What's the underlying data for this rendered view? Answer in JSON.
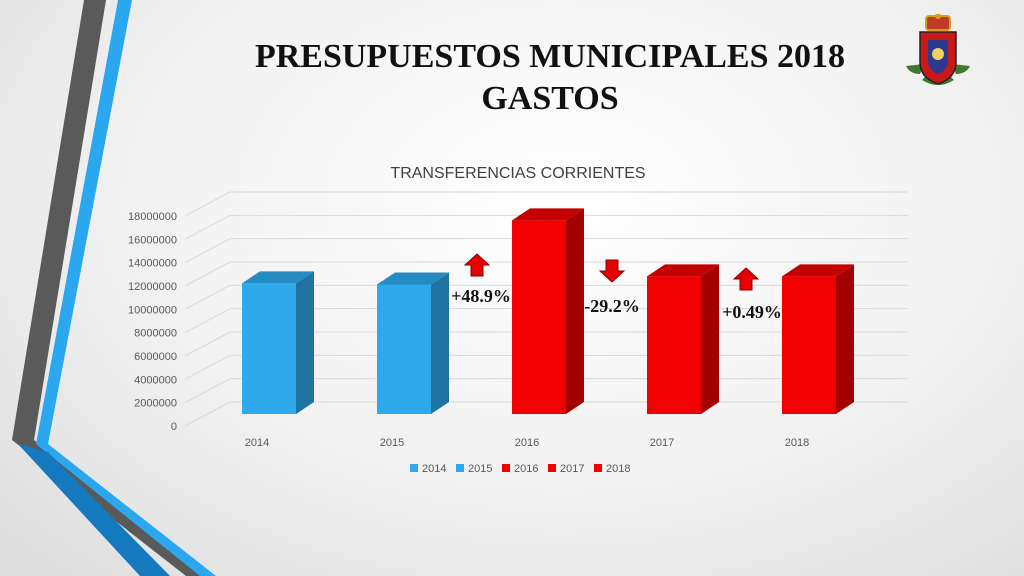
{
  "slide": {
    "title_line1": "PRESUPUESTOS MUNICIPALES 2018",
    "title_line2": "GASTOS"
  },
  "colors": {
    "blue": "#2ea9ec",
    "red": "#f00000",
    "accent_blue": "#1a9be0",
    "accent_gray": "#555555"
  },
  "icons": {
    "crest": "municipal-coat-of-arms-icon",
    "arrow_up": "arrow-up-icon",
    "arrow_down": "arrow-down-icon"
  },
  "chart_data": {
    "type": "bar",
    "title": "TRANSFERENCIAS CORRIENTES",
    "categories": [
      "2014",
      "2015",
      "2016",
      "2017",
      "2018"
    ],
    "values": [
      11200000,
      11100000,
      16600000,
      11800000,
      11800000
    ],
    "bar_colors": [
      "#2ea9ec",
      "#2ea9ec",
      "#f00000",
      "#f00000",
      "#f00000"
    ],
    "ylim": [
      0,
      18000000
    ],
    "yticks": [
      0,
      2000000,
      4000000,
      6000000,
      8000000,
      10000000,
      12000000,
      14000000,
      16000000,
      18000000
    ],
    "grid": true,
    "legend_position": "bottom",
    "legend": [
      {
        "label": "2014",
        "color": "#2ea9ec"
      },
      {
        "label": "2015",
        "color": "#2ea9ec"
      },
      {
        "label": "2016",
        "color": "#f00000"
      },
      {
        "label": "2017",
        "color": "#f00000"
      },
      {
        "label": "2018",
        "color": "#f00000"
      }
    ],
    "annotations": [
      {
        "text": "+48.9%",
        "direction": "up",
        "between": [
          "2015",
          "2016"
        ]
      },
      {
        "text": "-29.2%",
        "direction": "down",
        "between": [
          "2016",
          "2017"
        ]
      },
      {
        "text": "+0.49%",
        "direction": "up",
        "between": [
          "2017",
          "2018"
        ]
      }
    ]
  }
}
